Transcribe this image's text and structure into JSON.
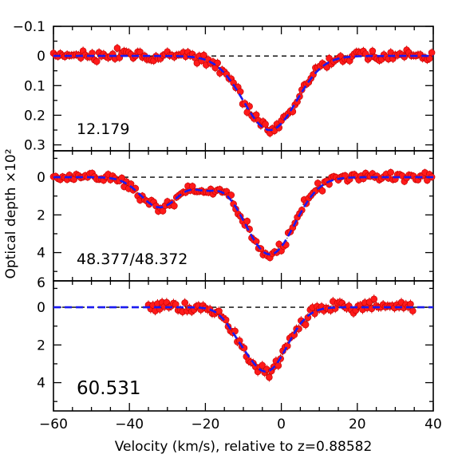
{
  "chart_data": {
    "type": "scatter",
    "xlabel": "Velocity (km/s), relative to z=0.88582",
    "ylabel": "Optical depth ×10²",
    "xlim": [
      -60,
      40
    ],
    "xticks": [
      -60,
      -40,
      -20,
      0,
      20,
      40
    ],
    "colors": {
      "data": "#ff1a1a",
      "fit": "#1a1af0",
      "zero_line": "#000000"
    },
    "panels": [
      {
        "label": "12.179",
        "ylim": [
          0.32,
          -0.1
        ],
        "yticks": [
          -0.1,
          0,
          0.1,
          0.2,
          0.3
        ],
        "ytick_labels": [
          "−0.1",
          "0",
          "0.1",
          "0.2",
          "0.3"
        ],
        "noise": 0.018,
        "xrange": [
          -60,
          40
        ],
        "features": [
          {
            "center": -3,
            "depth": 0.25,
            "width": 7
          }
        ]
      },
      {
        "label": "48.377/48.372",
        "ylim": [
          5.5,
          -1.4
        ],
        "yticks": [
          0,
          2,
          4
        ],
        "ytick_labels": [
          "0",
          "2",
          "4"
        ],
        "noise": 0.25,
        "xrange": [
          -60,
          40
        ],
        "features": [
          {
            "center": -32,
            "depth": 1.6,
            "width": 5
          },
          {
            "center": -20,
            "depth": 0.5,
            "width": 3
          },
          {
            "center": -3,
            "depth": 4.1,
            "width": 6.5
          }
        ]
      },
      {
        "label": "60.531",
        "ylim": [
          5.5,
          -1.4
        ],
        "yticks": [
          0,
          2,
          4
        ],
        "ytick_labels": [
          "0",
          "2",
          "4"
        ],
        "extra_tick_label": "6",
        "noise": 0.3,
        "xrange": [
          -35,
          35
        ],
        "features": [
          {
            "center": -12,
            "depth": 0.4,
            "width": 3
          },
          {
            "center": -4,
            "depth": 3.4,
            "width": 5.5
          }
        ]
      }
    ]
  }
}
